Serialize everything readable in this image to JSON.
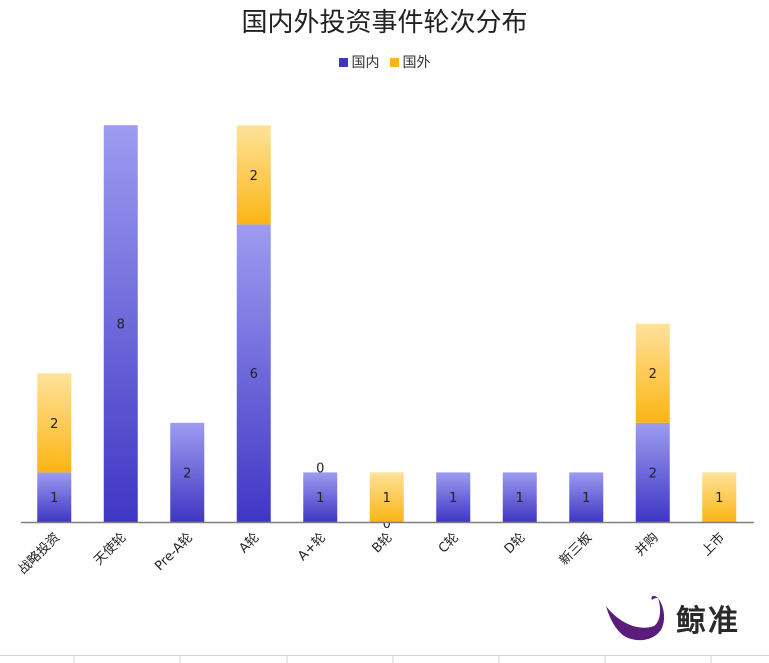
{
  "colors": {
    "domestic_top": "#9d9cf0",
    "domestic_bottom": "#3f36c4",
    "foreign_top": "#ffe29a",
    "foreign_bottom": "#fbb514",
    "axis": "#7f7f7f"
  },
  "watermark": {
    "text": "鲸准",
    "icon": "whale-logo-icon"
  },
  "chart_data": {
    "type": "bar",
    "stacked": true,
    "title": "国内外投资事件轮次分布",
    "legend_position": "top",
    "grid": false,
    "categories": [
      "战略投资",
      "天使轮",
      "Pre-A轮",
      "A轮",
      "A+轮",
      "B轮",
      "C轮",
      "D轮",
      "新三板",
      "并购",
      "上市"
    ],
    "series": [
      {
        "name": "国内",
        "values": [
          1,
          8,
          2,
          6,
          1,
          0,
          1,
          1,
          1,
          2,
          0
        ],
        "labels": [
          "1",
          "8",
          "2",
          "6",
          "1",
          "0",
          "1",
          "1",
          "1",
          "2",
          ""
        ]
      },
      {
        "name": "国外",
        "values": [
          2,
          0,
          0,
          2,
          0,
          1,
          0,
          0,
          0,
          2,
          1
        ],
        "labels": [
          "2",
          "",
          "",
          "2",
          "0",
          "1",
          "",
          "",
          "",
          "2",
          "1"
        ]
      }
    ],
    "ylim": [
      0,
      8
    ]
  }
}
